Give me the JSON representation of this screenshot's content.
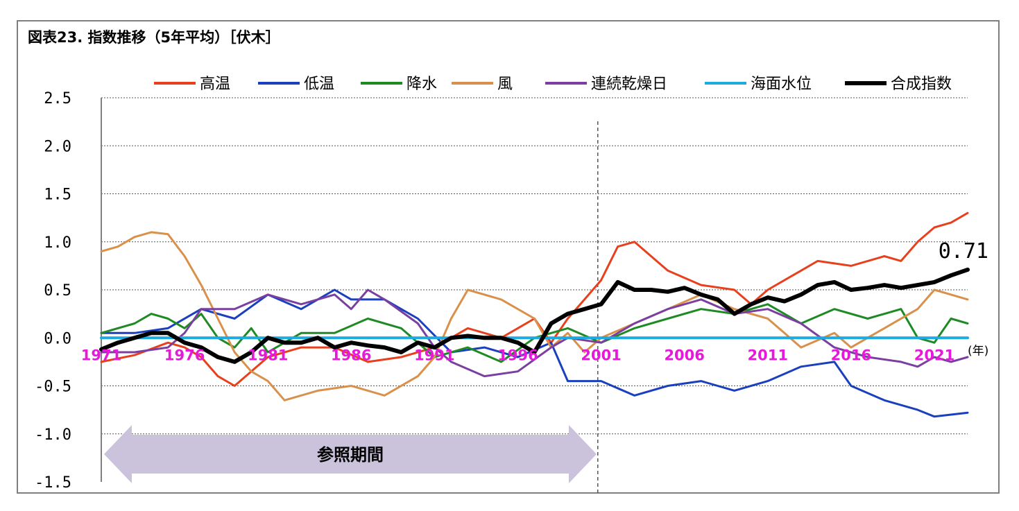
{
  "title": "図表23. 指数推移（5年平均）［伏木］",
  "chart_data": {
    "type": "line",
    "xlabel": "",
    "ylabel": "",
    "x_unit": "(年)",
    "ylim": [
      -1.5,
      2.5
    ],
    "yticks": [
      "2.5",
      "2.0",
      "1.5",
      "1.0",
      "0.5",
      "0.0",
      "-0.5",
      "-1.0",
      "-1.5"
    ],
    "ytick_values": [
      2.5,
      2.0,
      1.5,
      1.0,
      0.5,
      0.0,
      -0.5,
      -1.0,
      -1.5
    ],
    "xlim": [
      1971,
      2023
    ],
    "xticks": [
      "1971",
      "1976",
      "1981",
      "1986",
      "1991",
      "1996",
      "2001",
      "2006",
      "2011",
      "2016",
      "2021"
    ],
    "xtick_values": [
      1971,
      1976,
      1981,
      1986,
      1991,
      1996,
      2001,
      2006,
      2011,
      2016,
      2021
    ],
    "divider_x": 2000.8,
    "reference_period": {
      "label": "参照期間",
      "start": 1971,
      "end": 2000.8
    },
    "last_value_label": "0.71",
    "legend_position": "top",
    "grid": true,
    "series": [
      {
        "name": "高温",
        "color": "#e8401c",
        "width": 3,
        "x": [
          1971,
          1973,
          1975,
          1976,
          1977,
          1978,
          1979,
          1980,
          1981,
          1983,
          1985,
          1987,
          1989,
          1991,
          1993,
          1995,
          1997,
          1998,
          1999,
          2000,
          2001,
          2002,
          2003,
          2005,
          2007,
          2009,
          2010,
          2011,
          2013,
          2014,
          2016,
          2018,
          2019,
          2020,
          2021,
          2022,
          2023
        ],
        "y": [
          -0.25,
          -0.18,
          -0.05,
          -0.1,
          -0.2,
          -0.4,
          -0.5,
          -0.35,
          -0.2,
          -0.1,
          -0.1,
          -0.25,
          -0.2,
          -0.1,
          0.1,
          0.0,
          0.2,
          -0.05,
          0.2,
          0.4,
          0.6,
          0.95,
          1.0,
          0.7,
          0.55,
          0.5,
          0.35,
          0.5,
          0.7,
          0.8,
          0.75,
          0.85,
          0.8,
          1.0,
          1.15,
          1.2,
          1.3
        ]
      },
      {
        "name": "低温",
        "color": "#1a3fbf",
        "width": 3,
        "x": [
          1971,
          1973,
          1975,
          1977,
          1979,
          1981,
          1983,
          1985,
          1986,
          1988,
          1990,
          1992,
          1994,
          1996,
          1998,
          1999,
          2000,
          2001,
          2003,
          2005,
          2007,
          2009,
          2011,
          2013,
          2015,
          2016,
          2018,
          2020,
          2021,
          2022,
          2023
        ],
        "y": [
          0.05,
          0.05,
          0.1,
          0.3,
          0.2,
          0.45,
          0.3,
          0.5,
          0.4,
          0.4,
          0.2,
          -0.15,
          -0.1,
          -0.2,
          -0.05,
          -0.45,
          -0.45,
          -0.45,
          -0.6,
          -0.5,
          -0.45,
          -0.55,
          -0.45,
          -0.3,
          -0.25,
          -0.5,
          -0.65,
          -0.75,
          -0.82,
          -0.8,
          -0.78
        ]
      },
      {
        "name": "降水",
        "color": "#1d8a23",
        "width": 3,
        "x": [
          1971,
          1973,
          1974,
          1975,
          1976,
          1977,
          1978,
          1979,
          1980,
          1981,
          1983,
          1985,
          1987,
          1989,
          1991,
          1993,
          1995,
          1997,
          1999,
          2001,
          2003,
          2005,
          2007,
          2009,
          2011,
          2013,
          2015,
          2017,
          2019,
          2020,
          2021,
          2022,
          2023
        ],
        "y": [
          0.05,
          0.15,
          0.25,
          0.2,
          0.1,
          0.25,
          0.0,
          -0.1,
          0.1,
          -0.15,
          0.05,
          0.05,
          0.2,
          0.1,
          -0.2,
          -0.1,
          -0.25,
          0.0,
          0.1,
          -0.05,
          0.1,
          0.2,
          0.3,
          0.25,
          0.35,
          0.15,
          0.3,
          0.2,
          0.3,
          0.0,
          -0.05,
          0.2,
          0.15
        ]
      },
      {
        "name": "風",
        "color": "#d9904a",
        "width": 3,
        "x": [
          1971,
          1972,
          1973,
          1974,
          1975,
          1976,
          1977,
          1978,
          1979,
          1980,
          1981,
          1982,
          1984,
          1986,
          1988,
          1990,
          1991,
          1992,
          1993,
          1995,
          1997,
          1998,
          1999,
          2000,
          2001,
          2003,
          2005,
          2007,
          2009,
          2011,
          2012,
          2013,
          2015,
          2016,
          2018,
          2020,
          2021,
          2022,
          2023
        ],
        "y": [
          0.9,
          0.95,
          1.05,
          1.1,
          1.08,
          0.85,
          0.55,
          0.2,
          -0.15,
          -0.35,
          -0.45,
          -0.65,
          -0.55,
          -0.5,
          -0.6,
          -0.4,
          -0.2,
          0.2,
          0.5,
          0.4,
          0.2,
          -0.1,
          0.05,
          -0.15,
          0.0,
          0.15,
          0.3,
          0.45,
          0.3,
          0.2,
          0.05,
          -0.1,
          0.05,
          -0.1,
          0.1,
          0.3,
          0.5,
          0.45,
          0.4
        ]
      },
      {
        "name": "連続乾燥日",
        "color": "#7a3fa0",
        "width": 3,
        "x": [
          1971,
          1973,
          1975,
          1976,
          1977,
          1979,
          1981,
          1983,
          1985,
          1986,
          1987,
          1988,
          1990,
          1991,
          1992,
          1994,
          1996,
          1998,
          1999,
          2001,
          2003,
          2005,
          2007,
          2009,
          2011,
          2013,
          2015,
          2017,
          2019,
          2020,
          2021,
          2022,
          2023
        ],
        "y": [
          -0.15,
          -0.15,
          -0.1,
          0.05,
          0.3,
          0.3,
          0.45,
          0.35,
          0.45,
          0.3,
          0.5,
          0.4,
          0.15,
          -0.1,
          -0.25,
          -0.4,
          -0.35,
          -0.1,
          0.0,
          -0.05,
          0.15,
          0.3,
          0.4,
          0.25,
          0.3,
          0.15,
          -0.1,
          -0.2,
          -0.25,
          -0.3,
          -0.2,
          -0.25,
          -0.2
        ]
      },
      {
        "name": "海面水位",
        "color": "#1eaadf",
        "width": 4,
        "x": [
          1971,
          2023
        ],
        "y": [
          0.0,
          0.0
        ]
      },
      {
        "name": "合成指数",
        "color": "#000000",
        "width": 6,
        "x": [
          1971,
          1972,
          1973,
          1974,
          1975,
          1976,
          1977,
          1978,
          1979,
          1980,
          1981,
          1982,
          1983,
          1984,
          1985,
          1986,
          1987,
          1988,
          1989,
          1990,
          1991,
          1992,
          1993,
          1994,
          1995,
          1996,
          1997,
          1998,
          1999,
          2000,
          2001,
          2002,
          2003,
          2004,
          2005,
          2006,
          2007,
          2008,
          2009,
          2010,
          2011,
          2012,
          2013,
          2014,
          2015,
          2016,
          2017,
          2018,
          2019,
          2020,
          2021,
          2022,
          2023
        ],
        "y": [
          -0.12,
          -0.05,
          0.0,
          0.05,
          0.05,
          -0.05,
          -0.1,
          -0.2,
          -0.25,
          -0.15,
          0.0,
          -0.05,
          -0.05,
          0.0,
          -0.1,
          -0.05,
          -0.08,
          -0.1,
          -0.15,
          -0.05,
          -0.1,
          0.0,
          0.02,
          0.0,
          0.0,
          -0.05,
          -0.15,
          0.15,
          0.25,
          0.3,
          0.35,
          0.58,
          0.5,
          0.5,
          0.48,
          0.52,
          0.45,
          0.4,
          0.25,
          0.35,
          0.42,
          0.38,
          0.45,
          0.55,
          0.58,
          0.5,
          0.52,
          0.55,
          0.52,
          0.55,
          0.58,
          0.65,
          0.71
        ]
      }
    ]
  }
}
